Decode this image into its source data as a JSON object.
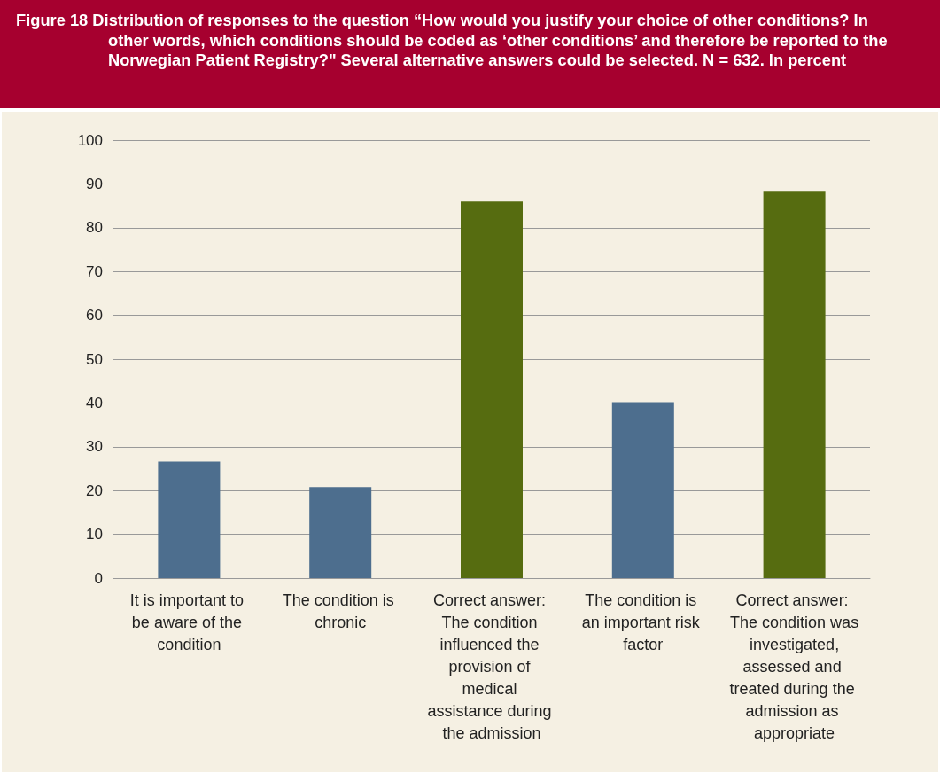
{
  "chart_data": {
    "type": "bar",
    "title": "Figure 18 Distribution of responses to the question “How would you justify your choice of other conditions? In other words, which conditions should be coded as ‘other conditions’ and therefore be reported to the Norwegian Patient Registry?\" Several alternative answers could be selected. N = 632. In percent",
    "categories": [
      "It is important to be aware of the condition",
      "The condition is chronic",
      "Correct answer: The condition influenced the provision of medical assistance during the admission",
      "The condition is an important risk factor",
      "Correct answer: The condition was investigated, assessed and treated during the admission as appropriate"
    ],
    "values": [
      26.6,
      20.8,
      86,
      40.2,
      88.4
    ],
    "colors": [
      "#4d6e8e",
      "#4d6e8e",
      "#566c10",
      "#4d6e8e",
      "#566c10"
    ],
    "ylim": [
      0,
      100
    ],
    "yticks": [
      0,
      10,
      20,
      30,
      40,
      50,
      60,
      70,
      80,
      90,
      100
    ],
    "grid": "y"
  }
}
